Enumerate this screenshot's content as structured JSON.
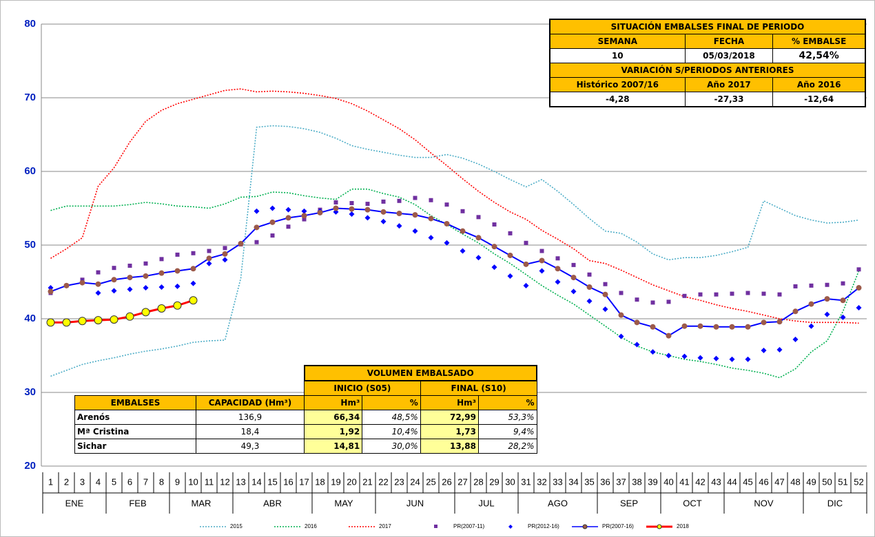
{
  "chart_data": {
    "type": "line",
    "categories": [
      "1",
      "2",
      "3",
      "4",
      "5",
      "6",
      "7",
      "8",
      "9",
      "10",
      "11",
      "12",
      "13",
      "14",
      "15",
      "16",
      "17",
      "18",
      "19",
      "20",
      "21",
      "22",
      "23",
      "24",
      "25",
      "26",
      "27",
      "28",
      "29",
      "30",
      "31",
      "32",
      "33",
      "34",
      "35",
      "36",
      "37",
      "38",
      "39",
      "40",
      "41",
      "42",
      "43",
      "44",
      "45",
      "46",
      "47",
      "48",
      "49",
      "50",
      "51",
      "52"
    ],
    "months": [
      {
        "label": "ENE",
        "from": 1,
        "to": 4
      },
      {
        "label": "FEB",
        "from": 5,
        "to": 8
      },
      {
        "label": "MAR",
        "from": 9,
        "to": 12
      },
      {
        "label": "ABR",
        "from": 13,
        "to": 17
      },
      {
        "label": "MAY",
        "from": 18,
        "to": 21
      },
      {
        "label": "JUN",
        "from": 22,
        "to": 26
      },
      {
        "label": "JUL",
        "from": 27,
        "to": 30
      },
      {
        "label": "AGO",
        "from": 31,
        "to": 35
      },
      {
        "label": "SEP",
        "from": 36,
        "to": 39
      },
      {
        "label": "OCT",
        "from": 40,
        "to": 43
      },
      {
        "label": "NOV",
        "from": 44,
        "to": 48
      },
      {
        "label": "DIC",
        "from": 49,
        "to": 52
      }
    ],
    "ylim": [
      20,
      80
    ],
    "yticks": [
      20,
      30,
      40,
      50,
      60,
      70,
      80
    ],
    "grid": true,
    "series": [
      {
        "name": "2015",
        "color": "#4bacc6",
        "line": "dotted",
        "marker": "none",
        "values": [
          32.2,
          33,
          33.8,
          34.3,
          34.7,
          35.2,
          35.6,
          35.9,
          36.3,
          36.8,
          37,
          37.1,
          45.5,
          66,
          66.2,
          66.1,
          65.8,
          65.3,
          64.5,
          63.5,
          63,
          62.6,
          62.2,
          61.9,
          61.9,
          62.3,
          61.8,
          61,
          60,
          58.9,
          57.9,
          58.9,
          57.3,
          55.5,
          53.6,
          51.9,
          51.6,
          50.4,
          48.8,
          48,
          48.3,
          48.3,
          48.6,
          49.1,
          49.7,
          56,
          55,
          54,
          53.4,
          53,
          53.1,
          53.4
        ]
      },
      {
        "name": "2016",
        "color": "#00b050",
        "line": "dotted",
        "marker": "none",
        "values": [
          54.7,
          55.3,
          55.3,
          55.3,
          55.3,
          55.5,
          55.8,
          55.6,
          55.3,
          55.2,
          55,
          55.6,
          56.5,
          56.6,
          57.2,
          57.1,
          56.7,
          56.4,
          56.2,
          57.6,
          57.6,
          57,
          56.5,
          55.5,
          54,
          52.8,
          51.5,
          50.3,
          48.8,
          47.5,
          46,
          44.5,
          43.2,
          42,
          40.5,
          39,
          37.5,
          36.3,
          35.5,
          35,
          34.5,
          34.2,
          33.8,
          33.3,
          33,
          32.6,
          32,
          33.2,
          35.5,
          37,
          41,
          46.5
        ]
      },
      {
        "name": "2017",
        "color": "#ff0000",
        "line": "dotted",
        "marker": "none",
        "values": [
          48.2,
          49.5,
          51,
          58,
          60.5,
          64,
          66.8,
          68.3,
          69.2,
          69.8,
          70.4,
          71,
          71.2,
          70.8,
          70.9,
          70.8,
          70.6,
          70.3,
          69.9,
          69.2,
          68.2,
          67,
          65.8,
          64.3,
          62.5,
          60.8,
          59,
          57.3,
          55.8,
          54.5,
          53.5,
          52,
          50.8,
          49.5,
          47.9,
          47.5,
          46.6,
          45.6,
          44.6,
          43.8,
          43,
          42.5,
          41.9,
          41.4,
          41,
          40.5,
          40,
          39.7,
          39.5,
          39.5,
          39.5,
          39.4
        ]
      },
      {
        "name": "PR(2007-11)",
        "color": "#7030a0",
        "line": "none",
        "marker": "square",
        "values": [
          43.5,
          44.5,
          45.3,
          46.3,
          46.9,
          47.2,
          47.5,
          48.1,
          48.7,
          48.9,
          49.2,
          49.6,
          50.1,
          50.4,
          51.3,
          52.5,
          53.5,
          54.8,
          55.8,
          55.7,
          55.6,
          55.9,
          56,
          56.4,
          56.1,
          55.5,
          54.6,
          53.8,
          52.8,
          51.6,
          50.3,
          49.2,
          48.2,
          47.3,
          46,
          44.7,
          43.5,
          42.6,
          42.2,
          42.3,
          43.1,
          43.3,
          43.3,
          43.4,
          43.5,
          43.4,
          43.3,
          44.4,
          44.5,
          44.6,
          44.8,
          46.7
        ]
      },
      {
        "name": "PR(2012-16)",
        "color": "#0000ff",
        "line": "none",
        "marker": "diamond",
        "values": [
          44.2,
          44.5,
          45,
          43.5,
          43.8,
          44,
          44.2,
          44.3,
          44.4,
          44.8,
          47.5,
          48,
          50.2,
          54.6,
          55,
          54.8,
          54.6,
          54.6,
          54.5,
          54.2,
          53.7,
          53.2,
          52.6,
          51.9,
          51,
          50.3,
          49.2,
          48.3,
          47,
          45.8,
          44.5,
          46.5,
          45,
          43.7,
          42.4,
          41.3,
          37.6,
          36.5,
          35.5,
          35,
          34.9,
          34.7,
          34.6,
          34.5,
          34.5,
          35.7,
          35.8,
          37.2,
          39,
          40.6,
          40.2,
          41.5
        ]
      },
      {
        "name": "PR(2007-16)",
        "color": "#0000ff",
        "line": "solid",
        "marker": "circle",
        "marker_color": "#9c5a4a",
        "values": [
          43.7,
          44.5,
          44.9,
          44.7,
          45.3,
          45.6,
          45.8,
          46.2,
          46.5,
          46.8,
          48.2,
          48.8,
          50.2,
          52.4,
          53.1,
          53.7,
          54,
          54.4,
          55,
          54.9,
          54.8,
          54.5,
          54.3,
          54.1,
          53.6,
          52.9,
          51.9,
          51,
          49.8,
          48.6,
          47.4,
          47.9,
          46.8,
          45.6,
          44.3,
          43.3,
          40.5,
          39.5,
          38.9,
          37.7,
          39,
          39,
          38.9,
          38.9,
          38.9,
          39.5,
          39.6,
          41,
          42,
          42.7,
          42.5,
          44.2
        ]
      },
      {
        "name": "2018",
        "color": "#ff0000",
        "line": "thick",
        "marker": "circle",
        "marker_color": "#ffff00",
        "values": [
          39.5,
          39.5,
          39.7,
          39.8,
          39.9,
          40.3,
          40.9,
          41.4,
          41.8,
          42.5,
          null,
          null,
          null,
          null,
          null,
          null,
          null,
          null,
          null,
          null,
          null,
          null,
          null,
          null,
          null,
          null,
          null,
          null,
          null,
          null,
          null,
          null,
          null,
          null,
          null,
          null,
          null,
          null,
          null,
          null,
          null,
          null,
          null,
          null,
          null,
          null,
          null,
          null,
          null,
          null,
          null,
          null
        ]
      }
    ]
  },
  "situation_table": {
    "title": "SITUACIÓN EMBALSES FINAL DE PERIODO",
    "headers": [
      "SEMANA",
      "FECHA",
      "% EMBALSE"
    ],
    "values": [
      "10",
      "05/03/2018",
      "42,54%"
    ],
    "subtitle": "VARIACIÓN S/PERIODOS ANTERIORES",
    "sub_headers": [
      "Histórico 2007/16",
      "Año 2017",
      "Año 2016"
    ],
    "sub_values": [
      "-4,28",
      "-27,33",
      "-12,64"
    ]
  },
  "volume_table": {
    "title": "VOLUMEN EMBALSADO",
    "groups": [
      "INICIO (S05)",
      "FINAL (S10)"
    ],
    "headers": [
      "EMBALSES",
      "CAPACIDAD (Hm³)",
      "Hm³",
      "%",
      "Hm³",
      "%"
    ],
    "rows": [
      [
        "Arenós",
        "136,9",
        "66,34",
        "48,5%",
        "72,99",
        "53,3%"
      ],
      [
        "Mª Cristina",
        "18,4",
        "1,92",
        "10,4%",
        "1,73",
        "9,4%"
      ],
      [
        "Sichar",
        "49,3",
        "14,81",
        "30,0%",
        "13,88",
        "28,2%"
      ]
    ]
  }
}
